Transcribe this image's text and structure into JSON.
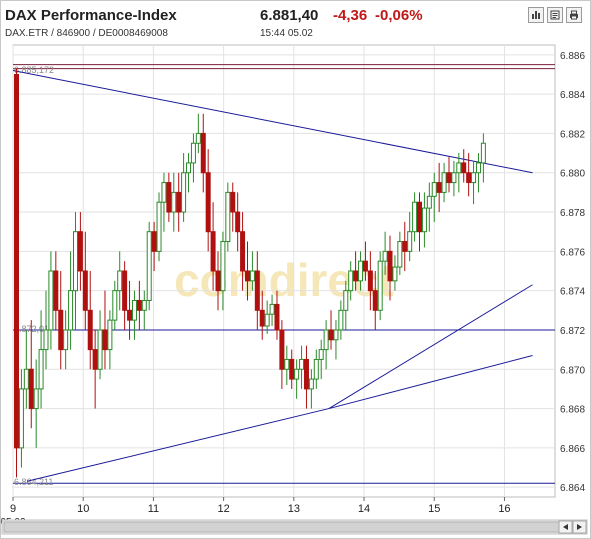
{
  "header": {
    "title": "DAX Performance-Index",
    "price": "6.881,40",
    "change": "-4,36",
    "change_pct": "-0,06%",
    "identifiers": "DAX.ETR  /  846900  /  DE0008469008",
    "time": "15:44",
    "date": "05.02",
    "buttons": [
      "bar-chart-icon",
      "news-icon",
      "print-icon"
    ]
  },
  "colors": {
    "up": "#2a8a2a",
    "down": "#b01010",
    "trendline": "#1a1a99",
    "resistance": "#7a1f3a",
    "negative": "#c01818"
  },
  "chart_data": {
    "type": "candlestick",
    "title": "",
    "xlabel": "",
    "ylabel": "",
    "x_ticks": [
      "9",
      "10",
      "11",
      "12",
      "13",
      "14",
      "15",
      "16"
    ],
    "x_sublabel": "05.02",
    "ylim": [
      6.8635,
      6.8865
    ],
    "y_ticks": [
      "6.864",
      "6.866",
      "6.868",
      "6.870",
      "6.872",
      "6.874",
      "6.876",
      "6.878",
      "6.880",
      "6.882",
      "6.884",
      "6.886"
    ],
    "grid": true,
    "watermark": "comdirect",
    "level_labels": [
      {
        "label": "6.885,172",
        "value": 6.88517
      },
      {
        "label": "6.872,01",
        "value": 6.87201
      },
      {
        "label": "6.864,211",
        "value": 6.86421
      }
    ],
    "horizontal_lines": [
      {
        "value": 6.8855,
        "kind": "resistance"
      },
      {
        "value": 6.8853,
        "kind": "resistance"
      },
      {
        "value": 6.872,
        "kind": "trendline"
      },
      {
        "value": 6.8642,
        "kind": "trendline"
      }
    ],
    "trend_lines": [
      {
        "from": [
          9.0,
          6.8852
        ],
        "to": [
          16.4,
          6.88
        ]
      },
      {
        "from": [
          9.2,
          6.8643
        ],
        "to": [
          13.5,
          6.868
        ]
      },
      {
        "from": [
          13.5,
          6.868
        ],
        "to": [
          16.4,
          6.8707
        ]
      },
      {
        "from": [
          13.5,
          6.868
        ],
        "to": [
          16.4,
          6.8743
        ]
      }
    ],
    "candles": [
      [
        9.05,
        6.885,
        6.8853,
        6.8645,
        6.866
      ],
      [
        9.12,
        6.866,
        6.87,
        6.865,
        6.869
      ],
      [
        9.19,
        6.869,
        6.872,
        6.868,
        6.87
      ],
      [
        9.26,
        6.87,
        6.8725,
        6.867,
        6.868
      ],
      [
        9.33,
        6.868,
        6.8705,
        6.866,
        6.869
      ],
      [
        9.4,
        6.869,
        6.873,
        6.868,
        6.871
      ],
      [
        9.47,
        6.871,
        6.874,
        6.87,
        6.872
      ],
      [
        9.54,
        6.872,
        6.876,
        6.871,
        6.875
      ],
      [
        9.61,
        6.875,
        6.876,
        6.872,
        6.873
      ],
      [
        9.68,
        6.873,
        6.875,
        6.87,
        6.871
      ],
      [
        9.75,
        6.871,
        6.873,
        6.87,
        6.872
      ],
      [
        9.82,
        6.872,
        6.876,
        6.871,
        6.874
      ],
      [
        9.89,
        6.874,
        6.878,
        6.872,
        6.877
      ],
      [
        9.96,
        6.877,
        6.878,
        6.874,
        6.875
      ],
      [
        10.03,
        6.875,
        6.877,
        6.872,
        6.873
      ],
      [
        10.1,
        6.873,
        6.875,
        6.87,
        6.871
      ],
      [
        10.17,
        6.871,
        6.872,
        6.868,
        6.87
      ],
      [
        10.24,
        6.87,
        6.873,
        6.8695,
        6.872
      ],
      [
        10.31,
        6.872,
        6.874,
        6.87,
        6.871
      ],
      [
        10.38,
        6.871,
        6.873,
        6.87,
        6.8725
      ],
      [
        10.45,
        6.8725,
        6.8745,
        6.872,
        6.874
      ],
      [
        10.52,
        6.874,
        6.876,
        6.873,
        6.875
      ],
      [
        10.59,
        6.875,
        6.8755,
        6.872,
        6.873
      ],
      [
        10.66,
        6.873,
        6.8745,
        6.8715,
        6.8725
      ],
      [
        10.73,
        6.8725,
        6.874,
        6.8715,
        6.8735
      ],
      [
        10.8,
        6.8735,
        6.8745,
        6.872,
        6.873
      ],
      [
        10.87,
        6.873,
        6.874,
        6.872,
        6.8735
      ],
      [
        10.94,
        6.8735,
        6.8775,
        6.873,
        6.877
      ],
      [
        11.01,
        6.877,
        6.8775,
        6.875,
        6.876
      ],
      [
        11.08,
        6.876,
        6.879,
        6.8755,
        6.8785
      ],
      [
        11.15,
        6.8785,
        6.88,
        6.877,
        6.8795
      ],
      [
        11.22,
        6.8795,
        6.88,
        6.8775,
        6.878
      ],
      [
        11.29,
        6.878,
        6.88,
        6.877,
        6.879
      ],
      [
        11.36,
        6.879,
        6.88,
        6.877,
        6.878
      ],
      [
        11.43,
        6.878,
        6.881,
        6.8775,
        6.88
      ],
      [
        11.5,
        6.88,
        6.881,
        6.879,
        6.8805
      ],
      [
        11.57,
        6.8805,
        6.882,
        6.8795,
        6.8815
      ],
      [
        11.64,
        6.8815,
        6.883,
        6.881,
        6.882
      ],
      [
        11.71,
        6.882,
        6.883,
        6.879,
        6.88
      ],
      [
        11.78,
        6.88,
        6.8812,
        6.876,
        6.877
      ],
      [
        11.85,
        6.877,
        6.8785,
        6.874,
        6.875
      ],
      [
        11.92,
        6.875,
        6.876,
        6.873,
        6.874
      ],
      [
        11.99,
        6.874,
        6.877,
        6.873,
        6.8765
      ],
      [
        12.06,
        6.8765,
        6.8795,
        6.876,
        6.879
      ],
      [
        12.13,
        6.879,
        6.8795,
        6.877,
        6.878
      ],
      [
        12.2,
        6.878,
        6.879,
        6.876,
        6.877
      ],
      [
        12.27,
        6.877,
        6.878,
        6.874,
        6.875
      ],
      [
        12.34,
        6.875,
        6.8765,
        6.8735,
        6.8745
      ],
      [
        12.41,
        6.8745,
        6.876,
        6.874,
        6.875
      ],
      [
        12.48,
        6.875,
        6.876,
        6.872,
        6.873
      ],
      [
        12.55,
        6.873,
        6.874,
        6.8715,
        6.8722
      ],
      [
        12.62,
        6.8722,
        6.8735,
        6.8718,
        6.8728
      ],
      [
        12.69,
        6.8728,
        6.8738,
        6.8722,
        6.8733
      ],
      [
        12.76,
        6.8733,
        6.874,
        6.8715,
        6.872
      ],
      [
        12.83,
        6.872,
        6.8725,
        6.869,
        6.87
      ],
      [
        12.9,
        6.87,
        6.8712,
        6.8692,
        6.8705
      ],
      [
        12.97,
        6.8705,
        6.871,
        6.869,
        6.8695
      ],
      [
        13.04,
        6.8695,
        6.8705,
        6.8685,
        6.87
      ],
      [
        13.11,
        6.87,
        6.8712,
        6.869,
        6.8705
      ],
      [
        13.18,
        6.8705,
        6.8712,
        6.868,
        6.869
      ],
      [
        13.25,
        6.869,
        6.87,
        6.868,
        6.8695
      ],
      [
        13.32,
        6.8695,
        6.871,
        6.869,
        6.8705
      ],
      [
        13.39,
        6.8705,
        6.8715,
        6.8695,
        6.871
      ],
      [
        13.46,
        6.871,
        6.8725,
        6.87,
        6.872
      ],
      [
        13.53,
        6.872,
        6.873,
        6.871,
        6.8715
      ],
      [
        13.6,
        6.8715,
        6.8725,
        6.8705,
        6.872
      ],
      [
        13.67,
        6.872,
        6.8735,
        6.8715,
        6.873
      ],
      [
        13.74,
        6.873,
        6.8745,
        6.872,
        6.874
      ],
      [
        13.81,
        6.874,
        6.8755,
        6.8735,
        6.875
      ],
      [
        13.88,
        6.875,
        6.876,
        6.874,
        6.8745
      ],
      [
        13.95,
        6.8745,
        6.876,
        6.874,
        6.8755
      ],
      [
        14.02,
        6.8755,
        6.8765,
        6.8745,
        6.875
      ],
      [
        14.09,
        6.875,
        6.876,
        6.873,
        6.874
      ],
      [
        14.16,
        6.874,
        6.875,
        6.872,
        6.873
      ],
      [
        14.23,
        6.873,
        6.876,
        6.8725,
        6.8755
      ],
      [
        14.3,
        6.8755,
        6.877,
        6.8748,
        6.876
      ],
      [
        14.37,
        6.876,
        6.8768,
        6.8735,
        6.8745
      ],
      [
        14.44,
        6.8745,
        6.8758,
        6.874,
        6.8752
      ],
      [
        14.51,
        6.8752,
        6.877,
        6.8748,
        6.8765
      ],
      [
        14.58,
        6.8765,
        6.8775,
        6.875,
        6.876
      ],
      [
        14.65,
        6.876,
        6.878,
        6.8755,
        6.877
      ],
      [
        14.72,
        6.877,
        6.879,
        6.8765,
        6.8785
      ],
      [
        14.79,
        6.8785,
        6.879,
        6.876,
        6.877
      ],
      [
        14.86,
        6.877,
        6.879,
        6.8762,
        6.8782
      ],
      [
        14.93,
        6.8782,
        6.8795,
        6.877,
        6.8788
      ],
      [
        15.0,
        6.8788,
        6.88,
        6.8775,
        6.8795
      ],
      [
        15.07,
        6.8795,
        6.8805,
        6.878,
        6.879
      ],
      [
        15.14,
        6.879,
        6.8805,
        6.8785,
        6.88
      ],
      [
        15.21,
        6.88,
        6.8808,
        6.879,
        6.8795
      ],
      [
        15.28,
        6.8795,
        6.8806,
        6.8788,
        6.88
      ],
      [
        15.35,
        6.88,
        6.881,
        6.879,
        6.8805
      ],
      [
        15.42,
        6.8805,
        6.8812,
        6.8795,
        6.88
      ],
      [
        15.49,
        6.88,
        6.881,
        6.8788,
        6.8795
      ],
      [
        15.56,
        6.8795,
        6.8806,
        6.8784,
        6.88
      ],
      [
        15.63,
        6.88,
        6.881,
        6.879,
        6.8805
      ],
      [
        15.7,
        6.8805,
        6.882,
        6.8795,
        6.8815
      ]
    ]
  }
}
